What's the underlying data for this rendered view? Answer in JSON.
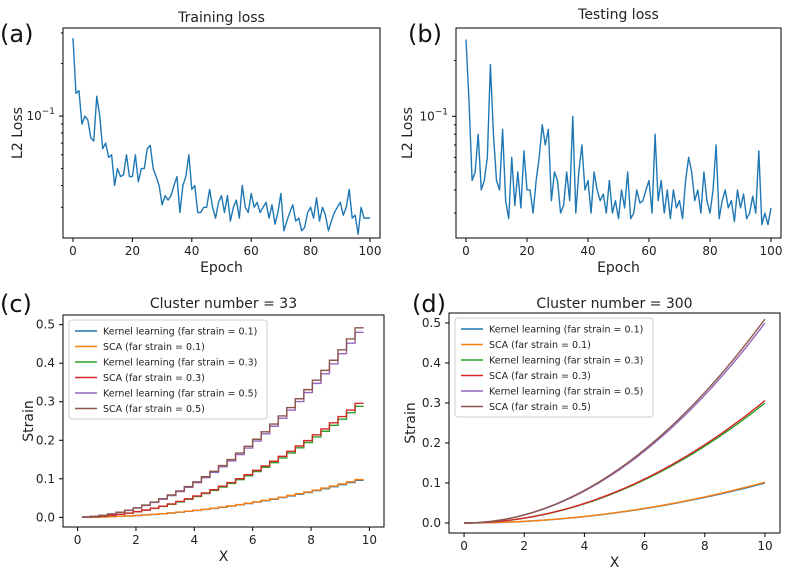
{
  "colors": {
    "loss_line": "#1f77b4",
    "c0": "#1f77b4",
    "c1": "#ff7f0e",
    "c2": "#2ca02c",
    "c3": "#d62728",
    "c4": "#9467bd",
    "c5": "#8c564b"
  },
  "chart_data": [
    {
      "id": "a",
      "panel_label": "(a)",
      "type": "line",
      "title": "Training loss",
      "xlabel": "Epoch",
      "ylabel": "L2 Loss",
      "yscale": "log",
      "xlim": [
        0,
        100
      ],
      "ylim": [
        0.02,
        0.32
      ],
      "xticks": [
        0,
        20,
        40,
        60,
        80,
        100
      ],
      "xtick_labels": [
        "0",
        "20",
        "40",
        "60",
        "80",
        "100"
      ],
      "ytick_value": 0.1,
      "ytick_label": "10^-1",
      "series": [
        {
          "name": "Training loss",
          "color": "#1f77b4",
          "values": [
            0.28,
            0.135,
            0.14,
            0.09,
            0.1,
            0.095,
            0.075,
            0.072,
            0.13,
            0.1,
            0.065,
            0.07,
            0.058,
            0.06,
            0.04,
            0.05,
            0.045,
            0.046,
            0.06,
            0.045,
            0.045,
            0.06,
            0.042,
            0.05,
            0.05,
            0.065,
            0.068,
            0.05,
            0.045,
            0.04,
            0.031,
            0.035,
            0.033,
            0.035,
            0.04,
            0.045,
            0.028,
            0.04,
            0.045,
            0.06,
            0.038,
            0.04,
            0.028,
            0.028,
            0.03,
            0.03,
            0.038,
            0.03,
            0.026,
            0.032,
            0.035,
            0.028,
            0.035,
            0.025,
            0.03,
            0.033,
            0.026,
            0.04,
            0.03,
            0.028,
            0.036,
            0.03,
            0.032,
            0.028,
            0.03,
            0.032,
            0.026,
            0.031,
            0.024,
            0.028,
            0.036,
            0.022,
            0.025,
            0.028,
            0.031,
            0.025,
            0.026,
            0.022,
            0.023,
            0.028,
            0.03,
            0.026,
            0.034,
            0.025,
            0.03,
            0.027,
            0.022,
            0.025,
            0.028,
            0.03,
            0.032,
            0.027,
            0.03,
            0.038,
            0.026,
            0.027,
            0.021,
            0.03,
            0.026,
            0.026,
            0.026
          ]
        }
      ]
    },
    {
      "id": "b",
      "panel_label": "(b)",
      "type": "line",
      "title": "Testing loss",
      "xlabel": "Epoch",
      "ylabel": "L2 Loss",
      "yscale": "log",
      "xlim": [
        0,
        100
      ],
      "ylim": [
        0.022,
        0.3
      ],
      "xticks": [
        0,
        20,
        40,
        60,
        80,
        100
      ],
      "xtick_labels": [
        "0",
        "20",
        "40",
        "60",
        "80",
        "100"
      ],
      "ytick_value": 0.1,
      "ytick_label": "10^-1",
      "series": [
        {
          "name": "Testing loss",
          "color": "#1f77b4",
          "values": [
            0.26,
            0.12,
            0.045,
            0.05,
            0.08,
            0.04,
            0.045,
            0.06,
            0.19,
            0.08,
            0.045,
            0.04,
            0.085,
            0.035,
            0.028,
            0.06,
            0.033,
            0.05,
            0.032,
            0.065,
            0.04,
            0.04,
            0.03,
            0.045,
            0.06,
            0.09,
            0.07,
            0.085,
            0.035,
            0.05,
            0.045,
            0.03,
            0.033,
            0.05,
            0.035,
            0.1,
            0.03,
            0.05,
            0.07,
            0.04,
            0.045,
            0.03,
            0.05,
            0.04,
            0.035,
            0.038,
            0.03,
            0.045,
            0.03,
            0.035,
            0.028,
            0.04,
            0.032,
            0.05,
            0.028,
            0.03,
            0.04,
            0.034,
            0.035,
            0.04,
            0.045,
            0.03,
            0.08,
            0.035,
            0.045,
            0.03,
            0.04,
            0.028,
            0.04,
            0.032,
            0.035,
            0.028,
            0.045,
            0.06,
            0.05,
            0.035,
            0.04,
            0.03,
            0.05,
            0.035,
            0.03,
            0.04,
            0.07,
            0.028,
            0.035,
            0.04,
            0.032,
            0.035,
            0.027,
            0.04,
            0.032,
            0.038,
            0.028,
            0.03,
            0.037,
            0.03,
            0.065,
            0.026,
            0.03,
            0.026,
            0.032
          ]
        }
      ]
    },
    {
      "id": "c",
      "panel_label": "(c)",
      "type": "line",
      "style": "step",
      "steps": 33,
      "title": "Cluster number = 33",
      "xlabel": "X",
      "ylabel": "Strain",
      "xlim": [
        -0.5,
        10.5
      ],
      "ylim": [
        -0.025,
        0.525
      ],
      "xticks": [
        0,
        2,
        4,
        6,
        8,
        10
      ],
      "xtick_labels": [
        "0",
        "2",
        "4",
        "6",
        "8",
        "10"
      ],
      "yticks": [
        0.0,
        0.1,
        0.2,
        0.3,
        0.4,
        0.5
      ],
      "ytick_labels": [
        "0.0",
        "0.1",
        "0.2",
        "0.3",
        "0.4",
        "0.5"
      ],
      "legend_position": "upper-left",
      "series": [
        {
          "name": "Kernel learning (far strain = 0.1)",
          "color": "#1f77b4",
          "x_start": 0.15,
          "x_end": 9.8,
          "final": 0.1
        },
        {
          "name": "SCA (far strain = 0.1)",
          "color": "#ff7f0e",
          "x_start": 0.15,
          "x_end": 9.8,
          "final": 0.102
        },
        {
          "name": "Kernel learning (far strain = 0.3)",
          "color": "#2ca02c",
          "x_start": 0.15,
          "x_end": 9.8,
          "final": 0.3
        },
        {
          "name": "SCA (far strain = 0.3)",
          "color": "#d62728",
          "x_start": 0.15,
          "x_end": 9.8,
          "final": 0.308
        },
        {
          "name": "Kernel learning (far strain = 0.5)",
          "color": "#9467bd",
          "x_start": 0.15,
          "x_end": 9.8,
          "final": 0.5
        },
        {
          "name": "SCA (far strain = 0.5)",
          "color": "#8c564b",
          "x_start": 0.15,
          "x_end": 9.8,
          "final": 0.512
        }
      ]
    },
    {
      "id": "d",
      "panel_label": "(d)",
      "type": "line",
      "style": "smooth",
      "title": "Cluster number = 300",
      "xlabel": "X",
      "ylabel": "Strain",
      "xlim": [
        -0.5,
        10.5
      ],
      "ylim": [
        -0.025,
        0.525
      ],
      "xticks": [
        0,
        2,
        4,
        6,
        8,
        10
      ],
      "xtick_labels": [
        "0",
        "2",
        "4",
        "6",
        "8",
        "10"
      ],
      "yticks": [
        0.0,
        0.1,
        0.2,
        0.3,
        0.4,
        0.5
      ],
      "ytick_labels": [
        "0.0",
        "0.1",
        "0.2",
        "0.3",
        "0.4",
        "0.5"
      ],
      "legend_position": "upper-left",
      "series": [
        {
          "name": "Kernel learning (far strain = 0.1)",
          "color": "#1f77b4",
          "x_start": 0.0,
          "x_end": 10.0,
          "final": 0.1
        },
        {
          "name": "SCA (far strain = 0.1)",
          "color": "#ff7f0e",
          "x_start": 0.0,
          "x_end": 10.0,
          "final": 0.102
        },
        {
          "name": "Kernel learning (far strain = 0.3)",
          "color": "#2ca02c",
          "x_start": 0.0,
          "x_end": 10.0,
          "final": 0.3
        },
        {
          "name": "SCA (far strain = 0.3)",
          "color": "#d62728",
          "x_start": 0.0,
          "x_end": 10.0,
          "final": 0.306
        },
        {
          "name": "Kernel learning (far strain = 0.5)",
          "color": "#9467bd",
          "x_start": 0.0,
          "x_end": 10.0,
          "final": 0.5
        },
        {
          "name": "SCA (far strain = 0.5)",
          "color": "#8c564b",
          "x_start": 0.0,
          "x_end": 10.0,
          "final": 0.51
        }
      ]
    }
  ]
}
